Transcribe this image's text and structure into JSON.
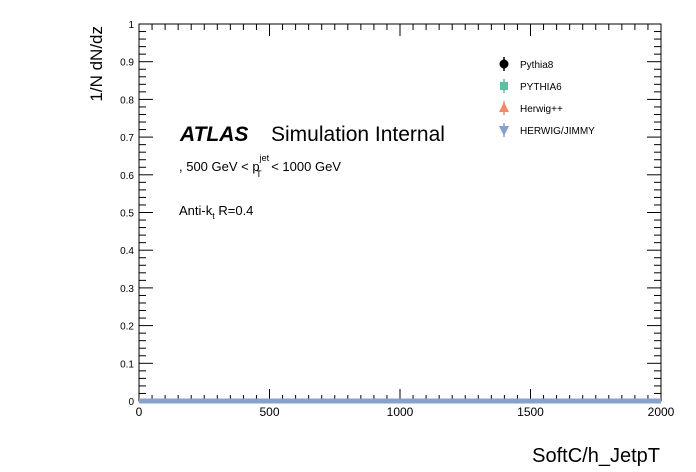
{
  "chart_data": {
    "type": "scatter",
    "title": "",
    "xlabel": "SoftC/h_JetpT",
    "ylabel": "1/N dN/dz",
    "xlim": [
      0,
      2000
    ],
    "ylim": [
      0,
      1
    ],
    "x_ticks": [
      "0",
      "500",
      "1000",
      "1500",
      "2000"
    ],
    "y_ticks": [
      "0",
      "0.1",
      "0.2",
      "0.3",
      "0.4",
      "0.5",
      "0.6",
      "0.7",
      "0.8",
      "0.9",
      "1"
    ],
    "x_tick_values": [
      0,
      500,
      1000,
      1500,
      2000
    ],
    "y_tick_values": [
      0,
      0.1,
      0.2,
      0.3,
      0.4,
      0.5,
      0.6,
      0.7,
      0.8,
      0.9,
      1
    ],
    "grid": false,
    "legend_position": "top-right",
    "series": [
      {
        "name": "Pythia8",
        "marker": "circle",
        "color": "#000000",
        "x": [
          0,
          2000
        ],
        "y": [
          0,
          0
        ]
      },
      {
        "name": "PYTHIA6",
        "marker": "square",
        "color": "#5cbf9f",
        "x": [
          0,
          2000
        ],
        "y": [
          0,
          0
        ]
      },
      {
        "name": "Herwig++",
        "marker": "triangle-up",
        "color": "#f08a6a",
        "x": [
          0,
          2000
        ],
        "y": [
          0,
          0
        ]
      },
      {
        "name": "HERWIG/JIMMY",
        "marker": "triangle-down",
        "color": "#8aa0cc",
        "x": [
          0,
          2000
        ],
        "y": [
          0,
          0
        ]
      }
    ],
    "annotations": {
      "atlas": "ATLAS",
      "atlas_suffix": "Simulation Internal",
      "pt_prefix": ", 500 GeV < p",
      "pt_sup": "jet",
      "pt_sub": "T",
      "pt_suffix": " < 1000 GeV",
      "algo_prefix": "Anti-k",
      "algo_sub": "t",
      "algo_suffix": " R=0.4"
    }
  }
}
